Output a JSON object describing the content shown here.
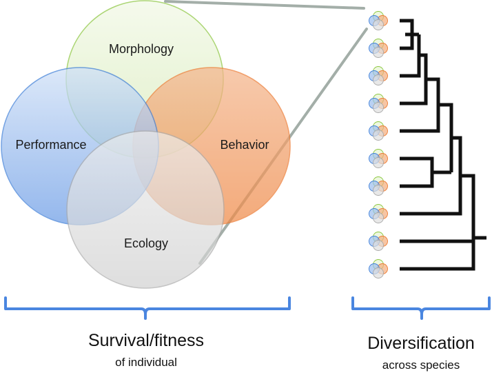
{
  "venn": {
    "labels": {
      "morphology": "Morphology",
      "performance": "Performance",
      "behavior": "Behavior",
      "ecology": "Ecology"
    },
    "colors": {
      "morphology": "#8cc63f",
      "performance": "#3f7fd8",
      "behavior": "#ec7a32",
      "ecology": "#a9a9a9"
    }
  },
  "captions": {
    "left_main": "Survival/fitness",
    "left_sub": "of individual",
    "right_main": "Diversification",
    "right_sub": "across species"
  },
  "phylogeny": {
    "tip_count": 10
  },
  "colors": {
    "bracket": "#4a86e0",
    "zoom_line": "#a3aea8",
    "tree": "#111111"
  }
}
